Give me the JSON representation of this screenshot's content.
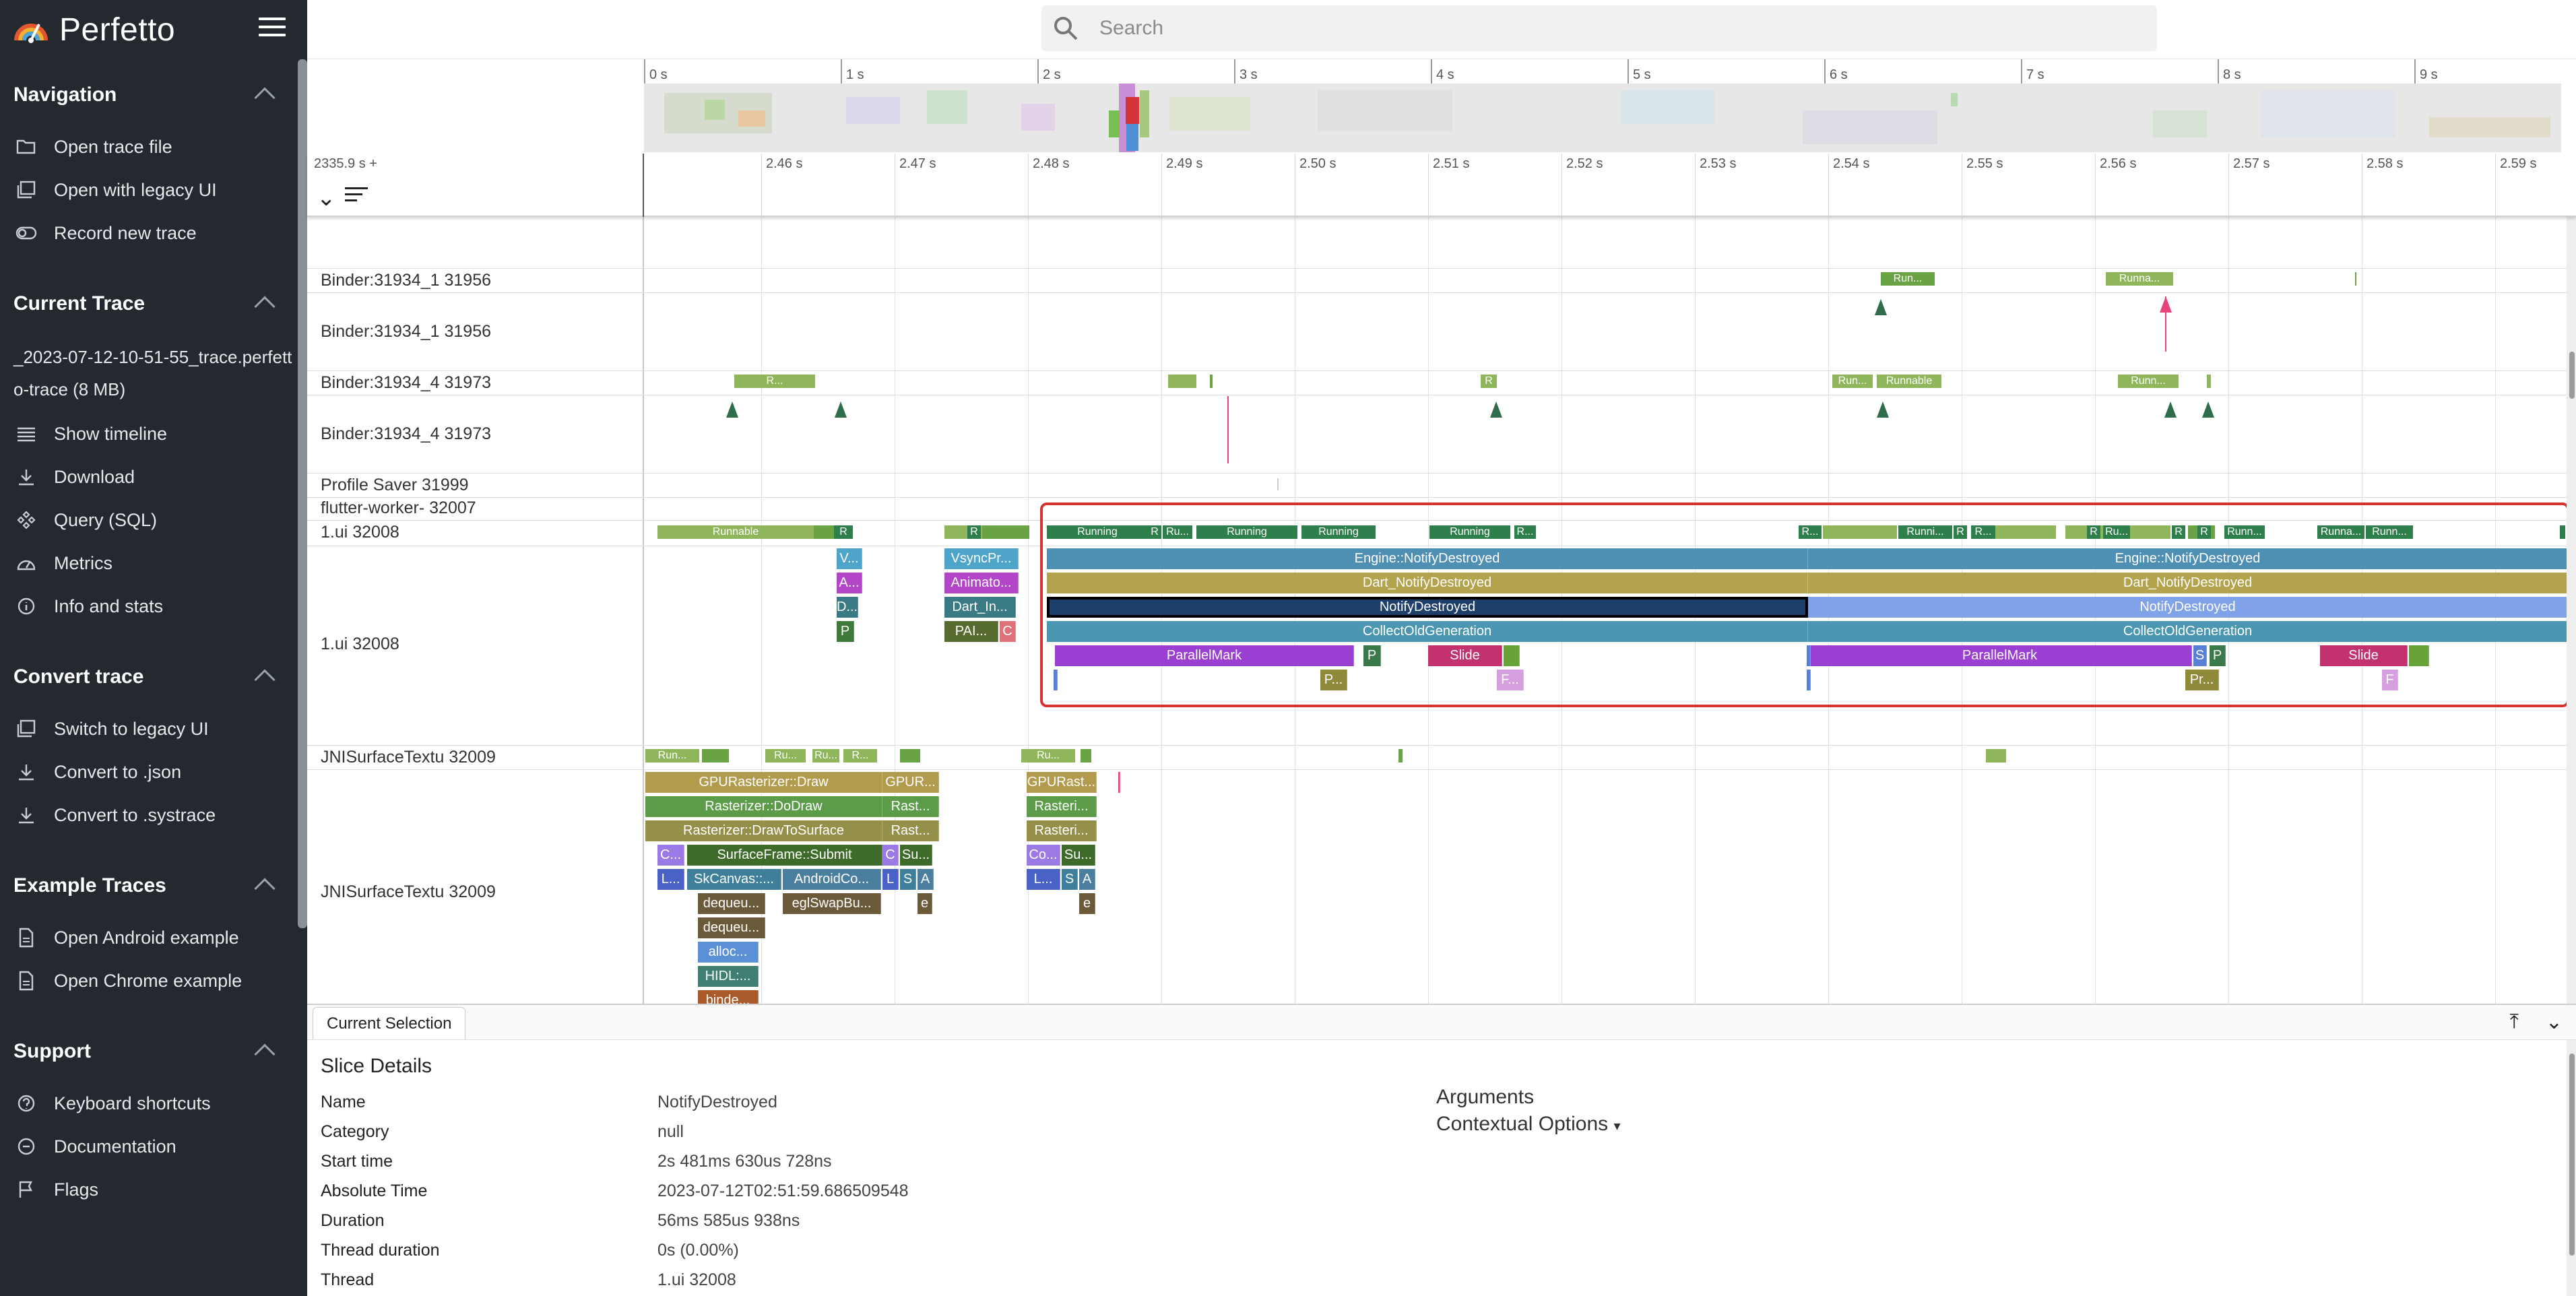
{
  "app": {
    "name": "Perfetto"
  },
  "search": {
    "placeholder": "Search"
  },
  "sidebar": {
    "sections": [
      {
        "title": "Navigation",
        "items": [
          {
            "label": "Open trace file",
            "icon": "folder-open-icon"
          },
          {
            "label": "Open with legacy UI",
            "icon": "filter-none-icon"
          },
          {
            "label": "Record new trace",
            "icon": "toggle-icon"
          }
        ]
      },
      {
        "title": "Current Trace",
        "trace_name": "_2023-07-12-10-51-55_trace.perfetto-trace (8 MB)",
        "items": [
          {
            "label": "Show timeline",
            "icon": "timeline-icon"
          },
          {
            "label": "Download",
            "icon": "download-icon"
          },
          {
            "label": "Query (SQL)",
            "icon": "database-icon"
          },
          {
            "label": "Metrics",
            "icon": "speed-icon"
          },
          {
            "label": "Info and stats",
            "icon": "info-icon"
          }
        ]
      },
      {
        "title": "Convert trace",
        "items": [
          {
            "label": "Switch to legacy UI",
            "icon": "filter-none-icon"
          },
          {
            "label": "Convert to .json",
            "icon": "download-icon"
          },
          {
            "label": "Convert to .systrace",
            "icon": "download-icon"
          }
        ]
      },
      {
        "title": "Example Traces",
        "items": [
          {
            "label": "Open Android example",
            "icon": "file-icon"
          },
          {
            "label": "Open Chrome example",
            "icon": "file-icon"
          }
        ]
      },
      {
        "title": "Support",
        "items": [
          {
            "label": "Keyboard shortcuts",
            "icon": "help-icon"
          },
          {
            "label": "Documentation",
            "icon": "link-icon"
          },
          {
            "label": "Flags",
            "icon": "flag-icon"
          }
        ]
      }
    ]
  },
  "overview_ticks": [
    "0 s",
    "1 s",
    "2 s",
    "3 s",
    "4 s",
    "5 s",
    "6 s",
    "7 s",
    "8 s",
    "9 s"
  ],
  "timeline": {
    "base_time": "2335.9 s +",
    "ticks": [
      "2.46 s",
      "2.47 s",
      "2.48 s",
      "2.49 s",
      "2.50 s",
      "2.51 s",
      "2.52 s",
      "2.53 s",
      "2.54 s",
      "2.55 s",
      "2.56 s",
      "2.57 s",
      "2.58 s",
      "2.59 s"
    ]
  },
  "tracks": {
    "binder1a": "Binder:31934_1 31956",
    "binder1b": "Binder:31934_1 31956",
    "binder4a": "Binder:31934_4 31973",
    "binder4b": "Binder:31934_4 31973",
    "profile": "Profile Saver 31999",
    "flutter": "flutter-worker- 32007",
    "ui_a": "1.ui 32008",
    "ui_b": "1.ui 32008",
    "jni_a": "JNISurfaceTextu 32009",
    "jni_b": "JNISurfaceTextu 32009"
  },
  "slices": {
    "s_runnable1": "Runnable",
    "s_r1": "R",
    "s_vsync": "VsyncPr...",
    "s_anim": "Animato...",
    "s_dartin": "Dart_In...",
    "s_pai": "PAI...",
    "s_c": "C",
    "s_v": "V...",
    "s_a": "A...",
    "s_d": "D...",
    "s_p": "P",
    "s_r2": "R",
    "s_running1": "Running",
    "s_r3": "R",
    "s_ru": "Ru...",
    "s_running2": "Running",
    "s_running3": "Running",
    "s_running4": "Running",
    "s_r4": "R...",
    "s_r5": "R...",
    "s_runni": "Runni...",
    "s_r6": "R",
    "s_r7": "R...",
    "s_r8": "R",
    "s_ru2": "Ru...",
    "s_r9": "R",
    "s_r10": "R",
    "s_runn": "Runn...",
    "s_runna": "Runna...",
    "s_runnb": "Runn...",
    "e1": "Engine::NotifyDestroyed",
    "e2": "Engine::NotifyDestroyed",
    "d1": "Dart_NotifyDestroyed",
    "d2": "Dart_NotifyDestroyed",
    "n1": "NotifyDestroyed",
    "n2": "NotifyDestroyed",
    "c1": "CollectOldGeneration",
    "c2": "CollectOldGeneration",
    "pm1": "ParallelMark",
    "pm2": "ParallelMark",
    "sl1": "Slide",
    "sl2": "Slide",
    "p1": "P",
    "p2": "P",
    "s2": "S",
    "pp1": "P...",
    "pr2": "Pr...",
    "f1": "F...",
    "f2": "F",
    "b_run": "Run...",
    "b_runna": "Runna...",
    "b_r": "R...",
    "b_r2": "R",
    "b_run2": "Run...",
    "b_runnable": "Runnable",
    "b_runn": "Runn...",
    "j_run": "Run...",
    "j_ru": "Ru...",
    "j_ru2": "Ru...",
    "j_r": "R...",
    "j_ru3": "Ru...",
    "g_draw": "GPURasterizer::Draw",
    "g_dodraw": "Rasterizer::DoDraw",
    "g_dts": "Rasterizer::DrawToSurface",
    "g_submit": "SurfaceFrame::Submit",
    "g_c": "C...",
    "g_l": "L...",
    "g_skc": "SkCanvas::...",
    "g_andr": "AndroidCo...",
    "g_deq1": "dequeu...",
    "g_egl": "eglSwapBu...",
    "g_deq2": "dequeu...",
    "g_alloc": "alloc...",
    "g_hidl": "HIDL:...",
    "g_binde": "binde...",
    "g2_gpur": "GPUR...",
    "g2_rast1": "Rast...",
    "g2_rast2": "Rast...",
    "g2_c": "C",
    "g2_su": "Su...",
    "g2_l": "L",
    "g2_s": "S",
    "g2_a": "A",
    "g2_e": "e",
    "g3_gpurast": "GPURast...",
    "g3_raster1": "Rasteri...",
    "g3_raster2": "Rasteri...",
    "g3_co": "Co...",
    "g3_su": "Su...",
    "g3_l": "L...",
    "g3_s": "S",
    "g3_a": "A",
    "g3_e": "e"
  },
  "details": {
    "tab": "Current Selection",
    "title": "Slice Details",
    "rows": [
      {
        "key": "Name",
        "value": "NotifyDestroyed"
      },
      {
        "key": "Category",
        "value": "null"
      },
      {
        "key": "Start time",
        "value": "2s 481ms 630us 728ns"
      },
      {
        "key": "Absolute Time",
        "value": "2023-07-12T02:51:59.686509548"
      },
      {
        "key": "Duration",
        "value": "56ms 585us 938ns"
      },
      {
        "key": "Thread duration",
        "value": "0s (0.00%)"
      },
      {
        "key": "Thread",
        "value": "1.ui 32008"
      }
    ],
    "arguments": "Arguments",
    "contextual": "Contextual Options"
  }
}
